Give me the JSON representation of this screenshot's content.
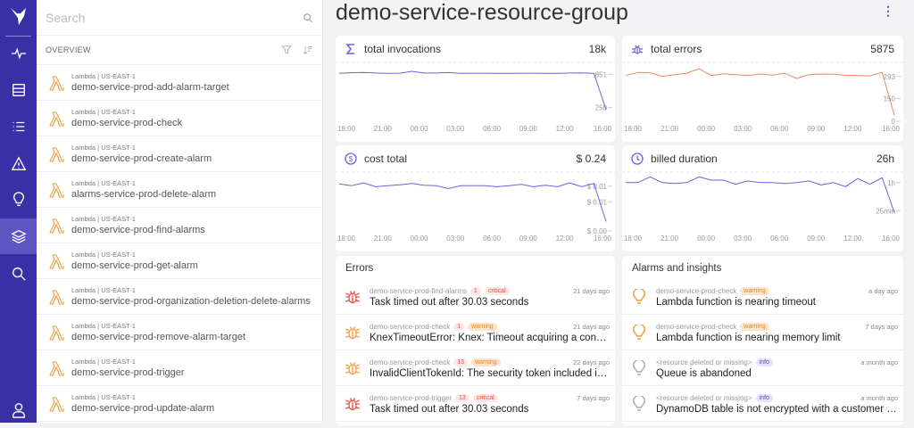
{
  "nav": {
    "items": [
      "pulse",
      "resources",
      "list",
      "alert",
      "insights",
      "layers",
      "search"
    ],
    "active": "layers",
    "bottom": "user"
  },
  "search": {
    "placeholder": "Search"
  },
  "overview": {
    "label": "OVERVIEW"
  },
  "resources": [
    {
      "sub": "Lambda | US-EAST-1",
      "name": "demo-service-prod-add-alarm-target"
    },
    {
      "sub": "Lambda | US-EAST-1",
      "name": "demo-service-prod-check"
    },
    {
      "sub": "Lambda | US-EAST-1",
      "name": "demo-service-prod-create-alarm"
    },
    {
      "sub": "Lambda | US-EAST-1",
      "name": "alarms-service-prod-delete-alarm"
    },
    {
      "sub": "Lambda | US-EAST-1",
      "name": "demo-service-prod-find-alarms"
    },
    {
      "sub": "Lambda | US-EAST-1",
      "name": "demo-service-prod-get-alarm"
    },
    {
      "sub": "Lambda | US-EAST-1",
      "name": "demo-service-prod-organization-deletion-delete-alarms"
    },
    {
      "sub": "Lambda | US-EAST-1",
      "name": "demo-service-prod-remove-alarm-target"
    },
    {
      "sub": "Lambda | US-EAST-1",
      "name": "demo-service-prod-trigger"
    },
    {
      "sub": "Lambda | US-EAST-1",
      "name": "demo-service-prod-update-alarm"
    }
  ],
  "page": {
    "title": "demo-service-resource-group"
  },
  "colors": {
    "nav": "#3a30a6",
    "accent": "#6a62e0",
    "errors": "#f5845a",
    "lambda": "#f39a3c",
    "critical": "#e94b3c",
    "warning": "#f08a24"
  },
  "chart_data": [
    {
      "type": "line",
      "title": "total invocations",
      "total": "18k",
      "icon": "sigma-icon",
      "color": "#6a62e0",
      "ylim": [
        0,
        1067
      ],
      "yticks": [
        {
          "v": 851,
          "label": "851"
        },
        {
          "v": 250,
          "label": "250"
        }
      ],
      "xticks": [
        "18:00",
        "21:00",
        "00:00",
        "03:00",
        "06:00",
        "09:00",
        "12:00",
        "16:00"
      ],
      "x": [
        "18:00",
        "19:00",
        "20:00",
        "21:00",
        "22:00",
        "23:00",
        "00:00",
        "01:00",
        "02:00",
        "03:00",
        "04:00",
        "05:00",
        "06:00",
        "07:00",
        "08:00",
        "09:00",
        "10:00",
        "11:00",
        "12:00",
        "13:00",
        "14:00",
        "15:00",
        "16:00"
      ],
      "values": [
        870,
        880,
        885,
        875,
        870,
        872,
        905,
        875,
        875,
        882,
        868,
        872,
        872,
        870,
        868,
        872,
        872,
        870,
        870,
        875,
        876,
        870,
        210
      ]
    },
    {
      "type": "line",
      "title": "total errors",
      "total": "5875",
      "icon": "bug-icon",
      "color": "#f5845a",
      "ylim": [
        0,
        386
      ],
      "yticks": [
        {
          "v": 293,
          "label": "293"
        },
        {
          "v": 150,
          "label": "150"
        },
        {
          "v": 0,
          "label": "0"
        }
      ],
      "xticks": [
        "18:00",
        "21:00",
        "00:00",
        "03:00",
        "06:00",
        "09:00",
        "12:00",
        "16:00"
      ],
      "x": [
        "18:00",
        "19:00",
        "20:00",
        "21:00",
        "22:00",
        "23:00",
        "00:00",
        "01:00",
        "02:00",
        "03:00",
        "04:00",
        "05:00",
        "06:00",
        "07:00",
        "08:00",
        "09:00",
        "10:00",
        "11:00",
        "12:00",
        "13:00",
        "14:00",
        "15:00",
        "16:00"
      ],
      "values": [
        300,
        320,
        318,
        295,
        305,
        315,
        345,
        300,
        312,
        305,
        300,
        310,
        302,
        315,
        280,
        305,
        310,
        308,
        302,
        300,
        298,
        320,
        40
      ]
    },
    {
      "type": "line",
      "title": "cost total",
      "total": "$ 0.24",
      "icon": "dollar-icon",
      "color": "#6a62e0",
      "ylim": [
        0,
        0.0125
      ],
      "yticks": [
        {
          "v": 0.0095,
          "label": "$ 0.01"
        },
        {
          "v": 0.0062,
          "label": "$ 0.01"
        },
        {
          "v": 0,
          "label": "$ 0.00"
        }
      ],
      "xticks": [
        "18:00",
        "21:00",
        "00:00",
        "03:00",
        "06:00",
        "09:00",
        "12:00",
        "16:00"
      ],
      "x": [
        "18:00",
        "19:00",
        "20:00",
        "21:00",
        "22:00",
        "23:00",
        "00:00",
        "01:00",
        "02:00",
        "03:00",
        "04:00",
        "05:00",
        "06:00",
        "07:00",
        "08:00",
        "09:00",
        "10:00",
        "11:00",
        "12:00",
        "13:00",
        "14:00",
        "15:00",
        "16:00"
      ],
      "values": [
        0.01,
        0.0096,
        0.0102,
        0.0094,
        0.0096,
        0.0098,
        0.0101,
        0.0097,
        0.0096,
        0.009,
        0.0096,
        0.0096,
        0.0096,
        0.0094,
        0.0096,
        0.0099,
        0.0094,
        0.0097,
        0.0094,
        0.0102,
        0.0094,
        0.0101,
        0.002
      ]
    },
    {
      "type": "line",
      "title": "billed duration",
      "total": "26h",
      "icon": "clock-icon",
      "color": "#6a62e0",
      "ylim": [
        0,
        73
      ],
      "yticks": [
        {
          "v": 60,
          "label": "1h"
        },
        {
          "v": 25,
          "label": "25min"
        }
      ],
      "xticks": [
        "18:00",
        "21:00",
        "00:00",
        "03:00",
        "06:00",
        "09:00",
        "12:00",
        "16:00"
      ],
      "x": [
        "18:00",
        "19:00",
        "20:00",
        "21:00",
        "22:00",
        "23:00",
        "00:00",
        "01:00",
        "02:00",
        "03:00",
        "04:00",
        "05:00",
        "06:00",
        "07:00",
        "08:00",
        "09:00",
        "10:00",
        "11:00",
        "12:00",
        "13:00",
        "14:00",
        "15:00",
        "16:00"
      ],
      "values": [
        60,
        60,
        67,
        60,
        59,
        60,
        67,
        63,
        63,
        58,
        62,
        60,
        60,
        59,
        60,
        62,
        57,
        60,
        55,
        65,
        58,
        66,
        23
      ]
    }
  ],
  "errors": {
    "title": "Errors",
    "items": [
      {
        "resource": "demo-service-prod-find-alarms",
        "count": "1",
        "severity": "critical",
        "time": "21 days ago",
        "message": "Task timed out after 30.03 seconds"
      },
      {
        "resource": "demo-service-prod-check",
        "count": "1",
        "severity": "warning",
        "time": "21 days ago",
        "message": "KnexTimeoutError: Knex: Timeout acquiring a connection. The pool is probably full."
      },
      {
        "resource": "demo-service-prod-check",
        "count": "13",
        "severity": "warning",
        "time": "22 days ago",
        "message": "InvalidClientTokenId: The security token included in the request is invalid."
      },
      {
        "resource": "demo-service-prod-trigger",
        "count": "13",
        "severity": "critical",
        "time": "7 days ago",
        "message": "Task timed out after 30.03 seconds"
      }
    ]
  },
  "alarms": {
    "title": "Alarms and insights",
    "items": [
      {
        "resource": "demo-service-prod-check",
        "severity": "warning",
        "time": "a day ago",
        "message": "Lambda function is nearing timeout"
      },
      {
        "resource": "demo-service-prod-check",
        "severity": "warning",
        "time": "7 days ago",
        "message": "Lambda function is nearing memory limit"
      },
      {
        "resource": "<resource deleted or missing>",
        "severity": "info",
        "time": "a month ago",
        "message": "Queue is abandoned"
      },
      {
        "resource": "<resource deleted or missing>",
        "severity": "info",
        "time": "a month ago",
        "message": "DynamoDB table is not encrypted with a customer managed key"
      }
    ]
  }
}
